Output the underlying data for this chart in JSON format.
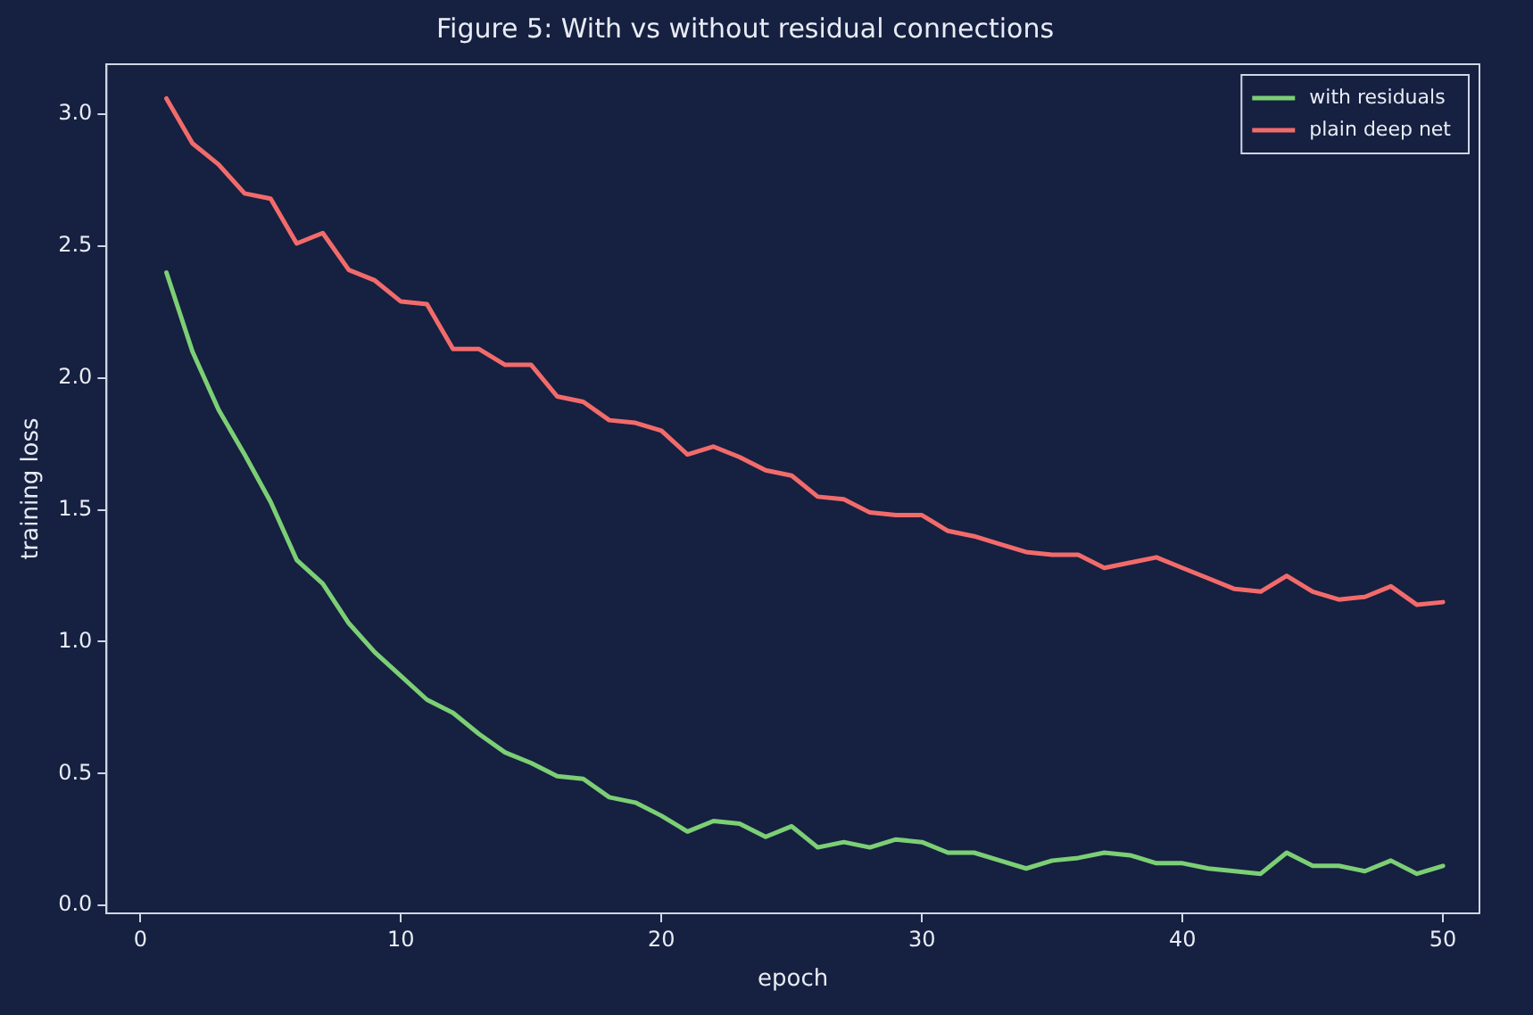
{
  "chart_data": {
    "type": "line",
    "title": "Figure 5: With vs without residual connections",
    "xlabel": "epoch",
    "ylabel": "training loss",
    "x": [
      1,
      2,
      3,
      4,
      5,
      6,
      7,
      8,
      9,
      10,
      11,
      12,
      13,
      14,
      15,
      16,
      17,
      18,
      19,
      20,
      21,
      22,
      23,
      24,
      25,
      26,
      27,
      28,
      29,
      30,
      31,
      32,
      33,
      34,
      35,
      36,
      37,
      38,
      39,
      40,
      41,
      42,
      43,
      44,
      45,
      46,
      47,
      48,
      49,
      50
    ],
    "series": [
      {
        "name": "with residuals",
        "color": "#7ccf75",
        "values": [
          2.4,
          2.1,
          1.88,
          1.71,
          1.53,
          1.31,
          1.22,
          1.07,
          0.96,
          0.87,
          0.78,
          0.73,
          0.65,
          0.58,
          0.54,
          0.49,
          0.48,
          0.41,
          0.39,
          0.34,
          0.28,
          0.32,
          0.31,
          0.26,
          0.3,
          0.22,
          0.24,
          0.22,
          0.25,
          0.24,
          0.2,
          0.2,
          0.17,
          0.14,
          0.17,
          0.18,
          0.2,
          0.19,
          0.16,
          0.16,
          0.14,
          0.13,
          0.12,
          0.2,
          0.15,
          0.15,
          0.13,
          0.17,
          0.12,
          0.15
        ]
      },
      {
        "name": "plain deep net",
        "color": "#f26b6b",
        "values": [
          3.06,
          2.89,
          2.81,
          2.7,
          2.68,
          2.51,
          2.55,
          2.41,
          2.37,
          2.29,
          2.28,
          2.11,
          2.11,
          2.05,
          2.05,
          1.93,
          1.91,
          1.84,
          1.83,
          1.8,
          1.71,
          1.74,
          1.7,
          1.65,
          1.63,
          1.55,
          1.54,
          1.49,
          1.48,
          1.48,
          1.42,
          1.4,
          1.37,
          1.34,
          1.33,
          1.33,
          1.28,
          1.3,
          1.32,
          1.28,
          1.24,
          1.2,
          1.19,
          1.25,
          1.19,
          1.16,
          1.17,
          1.21,
          1.14,
          1.15
        ]
      }
    ],
    "xlim": [
      -1.3,
      51.4
    ],
    "xticks": [
      0,
      10,
      20,
      30,
      40,
      50
    ],
    "ylim": [
      -0.03,
      3.19
    ],
    "yticks": [
      {
        "value": 0,
        "label": "0.0"
      },
      {
        "value": 0.5,
        "label": "0.5"
      },
      {
        "value": 1,
        "label": "1.0"
      },
      {
        "value": 1.5,
        "label": "1.5"
      },
      {
        "value": 2,
        "label": "2.0"
      },
      {
        "value": 2.5,
        "label": "2.5"
      },
      {
        "value": 3,
        "label": "3.0"
      }
    ],
    "grid": false,
    "legend": "top right",
    "marker": "none",
    "line_style": "solid"
  }
}
